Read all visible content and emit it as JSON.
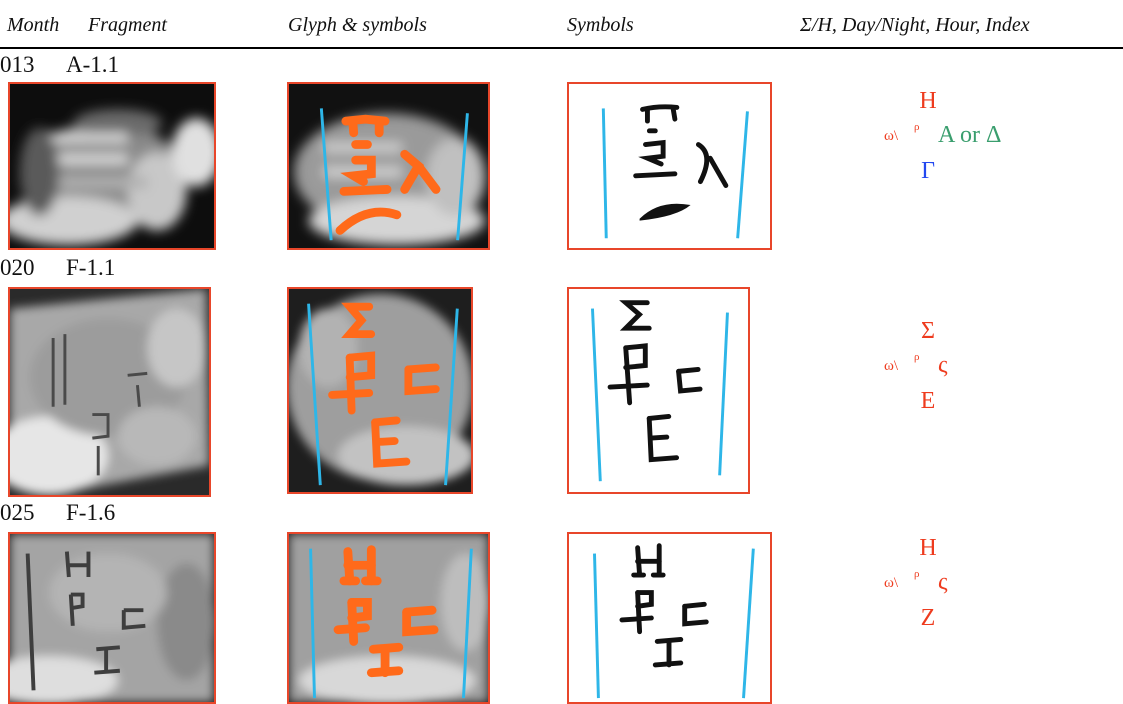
{
  "header": {
    "month": "Month",
    "fragment": "Fragment",
    "glyph": "Glyph & symbols",
    "symbols": "Symbols",
    "info": "Σ/H, Day/Night, Hour, Index"
  },
  "rows": [
    {
      "month": "013",
      "fragment": "A-1.1",
      "info": {
        "sigma_eta": "H",
        "day_night": "ω",
        "day_night_sup": "ρ",
        "hour": "A or Δ",
        "index": "Γ"
      },
      "colors": {
        "sigma_eta": "#ee3b1e",
        "day_night": "#ee3b1e",
        "hour": "#3a9e6e",
        "index": "#2348f0"
      }
    },
    {
      "month": "020",
      "fragment": "F-1.1",
      "info": {
        "sigma_eta": "Σ",
        "day_night": "ω",
        "day_night_sup": "ρ",
        "hour": "ς",
        "index": "E"
      },
      "colors": {
        "sigma_eta": "#ee3b1e",
        "day_night": "#ee3b1e",
        "hour": "#ee3b1e",
        "index": "#ee3b1e"
      }
    },
    {
      "month": "025",
      "fragment": "F-1.6",
      "info": {
        "sigma_eta": "H",
        "day_night": "ω",
        "day_night_sup": "ρ",
        "hour": "ς",
        "index": "Z"
      },
      "colors": {
        "sigma_eta": "#ee3b1e",
        "day_night": "#ee3b1e",
        "hour": "#ee3b1e",
        "index": "#ee3b1e"
      }
    }
  ],
  "palette": {
    "frame": "#e8462a",
    "guide_line": "#2eb6e8",
    "highlight": "#ff6a1a",
    "ink": "#111111"
  }
}
